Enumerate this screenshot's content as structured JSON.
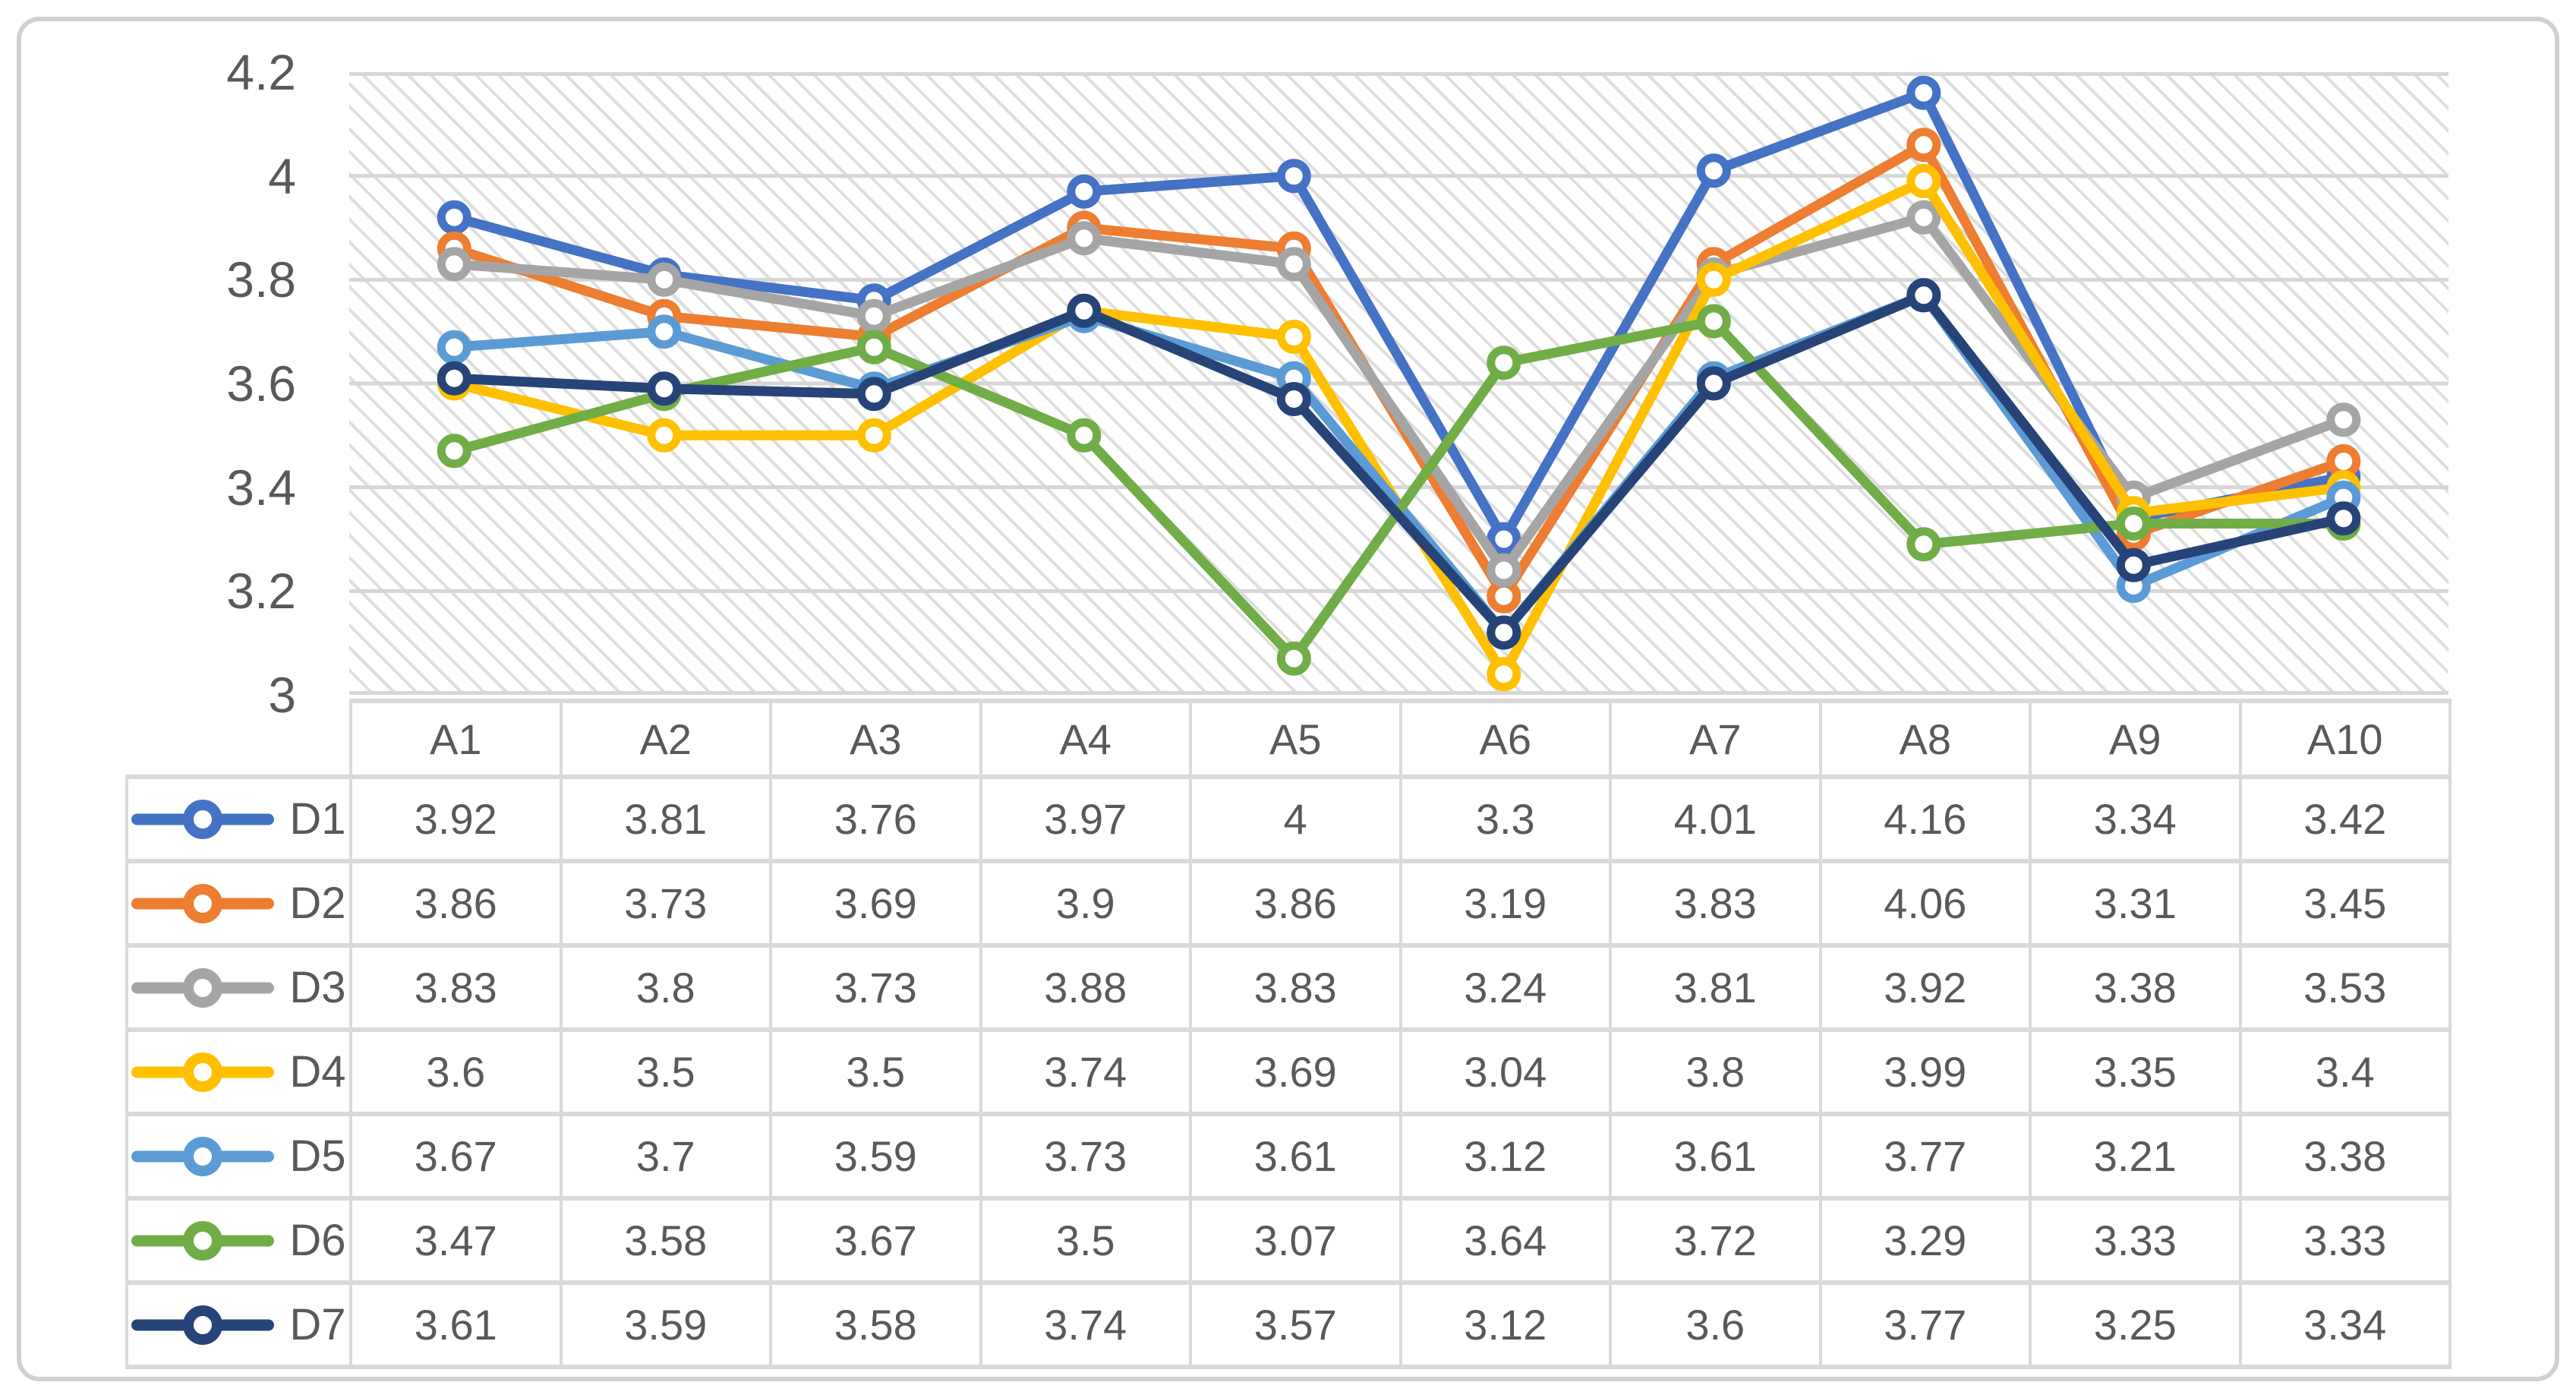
{
  "figure": {
    "background": "#ffffff",
    "frame_color": "#cfcfcf",
    "text_color": "#595959",
    "table_grid_color": "#d9d9d9",
    "plot_gridline_color": "#d6d6d6",
    "plot_hatch_color": "#dedede"
  },
  "chart_data": {
    "type": "line",
    "title": "",
    "xlabel": "",
    "ylabel": "",
    "categories": [
      "A1",
      "A2",
      "A3",
      "A4",
      "A5",
      "A6",
      "A7",
      "A8",
      "A9",
      "A10"
    ],
    "series": [
      {
        "name": "D1",
        "color": "#4472c4",
        "values": [
          3.92,
          3.81,
          3.76,
          3.97,
          4,
          3.3,
          4.01,
          4.16,
          3.34,
          3.42
        ]
      },
      {
        "name": "D2",
        "color": "#ed7d31",
        "values": [
          3.86,
          3.73,
          3.69,
          3.9,
          3.86,
          3.19,
          3.83,
          4.06,
          3.31,
          3.45
        ]
      },
      {
        "name": "D3",
        "color": "#a5a5a5",
        "values": [
          3.83,
          3.8,
          3.73,
          3.88,
          3.83,
          3.24,
          3.81,
          3.92,
          3.38,
          3.53
        ]
      },
      {
        "name": "D4",
        "color": "#ffc000",
        "values": [
          3.6,
          3.5,
          3.5,
          3.74,
          3.69,
          3.04,
          3.8,
          3.99,
          3.35,
          3.4
        ]
      },
      {
        "name": "D5",
        "color": "#5b9bd5",
        "values": [
          3.67,
          3.7,
          3.59,
          3.73,
          3.61,
          3.12,
          3.61,
          3.77,
          3.21,
          3.38
        ]
      },
      {
        "name": "D6",
        "color": "#70ad47",
        "values": [
          3.47,
          3.58,
          3.67,
          3.5,
          3.07,
          3.64,
          3.72,
          3.29,
          3.33,
          3.33
        ]
      },
      {
        "name": "D7",
        "color": "#264478",
        "values": [
          3.61,
          3.59,
          3.58,
          3.74,
          3.57,
          3.12,
          3.6,
          3.77,
          3.25,
          3.34
        ]
      }
    ],
    "ylim": [
      3,
      4.2
    ],
    "yticks": [
      "4.2",
      "4",
      "3.8",
      "3.6",
      "3.4",
      "3.2",
      "3"
    ],
    "grid": true,
    "legend_position": "table-rows-left",
    "plot_background": "light-downward-diagonal-hatch",
    "marker": "open-circle"
  }
}
